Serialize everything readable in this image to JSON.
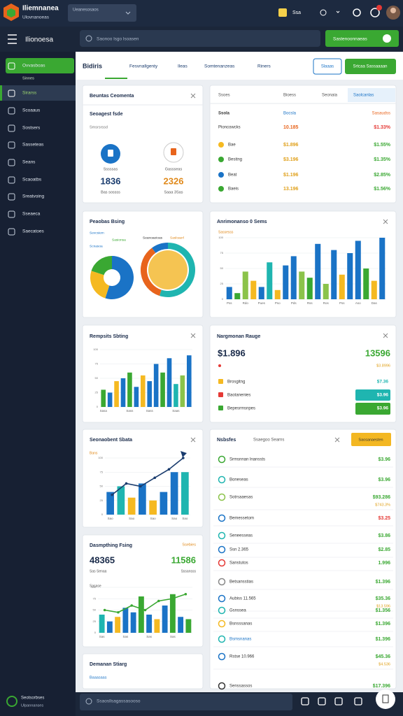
{
  "top_bar": {
    "brand": "Iliemnanea",
    "subtitle": "Ulovnanoeas",
    "selector": "Ueanesosaos",
    "account": "Ssa"
  },
  "header": {
    "title": "Ilionoesa",
    "search": "Saonoo lsgo lsoasen",
    "button": "Sastenoonnaeas"
  },
  "sidebar": {
    "items": [
      "Ovvasboas",
      "Sinnes",
      "Sirarss",
      "Scoaaus",
      "Sostsers",
      "Sasseteas",
      "Seans",
      "Scaoatbs",
      "Sreatvoing",
      "Sseaeca",
      "Saecatoes"
    ],
    "footer_title": "Seotsorbses",
    "footer_subtitle": "Ulpannanses"
  },
  "tabs": {
    "brand": "Bidiris",
    "items": [
      "Fesvnallgenty",
      "Ileas",
      "Somtenanzeas",
      "Riners"
    ],
    "outline_button": "Slaaas",
    "primary_button": "Srtcaa Sassaaaan"
  },
  "summary_card": {
    "title": "Beuntas Ceomenta",
    "subtitle": "Seoagest fsde",
    "caption": "Smsrsrssd",
    "kpis": [
      {
        "label": "Sssssas",
        "value": "1836",
        "note": "Bas sossss"
      },
      {
        "label": "Gassseas",
        "value": "2326",
        "note": "Saaa 3Sas"
      }
    ]
  },
  "table_card": {
    "tabs": [
      "Ssoes",
      "Bioess",
      "Seonaia",
      "Saolcanlas"
    ],
    "columns": [
      "Ssola",
      "Bocsla",
      "Sasaudss"
    ],
    "rows": [
      [
        "Pioncowcks",
        "10.185",
        "$1.33%"
      ],
      [
        "Bae",
        "$1.896",
        "$1.55%"
      ],
      [
        "Besitng",
        "$3.196",
        "$1.35%"
      ],
      [
        "Beat",
        "$1.196",
        "$2.85%"
      ],
      [
        "Baeis",
        "13.196",
        "$1.56%"
      ]
    ]
  },
  "pie_card": {
    "title": "Peaobas Bsing",
    "legend": [
      "Sevcsiem",
      "Sasionsa",
      "Scnasoa",
      "Seanoaeioas",
      "Sasloaerl"
    ],
    "charts": [
      {
        "type": "pie",
        "values": [
          55,
          25,
          20
        ],
        "colors": [
          "#1a73c6",
          "#f5b921",
          "#3aa832"
        ]
      },
      {
        "type": "pie",
        "values": [
          55,
          35,
          10
        ],
        "colors": [
          "#1fb5b0",
          "#e8641c",
          "#1a73c6"
        ]
      }
    ]
  },
  "bar_card": {
    "title": "Anrimonanso 0 Sems",
    "legend": "Sassesss",
    "chart": {
      "type": "bar",
      "ylim": [
        0,
        100
      ],
      "yticks": [
        0,
        25,
        50,
        75,
        100
      ],
      "values": [
        20,
        10,
        45,
        30,
        20,
        60,
        15,
        55,
        70,
        45,
        35,
        90,
        25,
        80,
        40,
        75,
        95,
        50,
        30,
        100
      ],
      "colors": [
        "#1a73c6",
        "#3aa832",
        "#8bc34a",
        "#f5b921",
        "#1a73c6",
        "#1fb5b0",
        "#f5b921",
        "#1a73c6",
        "#1a73c6",
        "#8bc34a",
        "#3aa832",
        "#1a73c6",
        "#8bc34a",
        "#1a73c6",
        "#f5b921",
        "#1a73c6",
        "#1a73c6",
        "#3aa832",
        "#f5b921",
        "#1a73c6"
      ],
      "categories": [
        "Pss",
        null,
        "Rdo",
        null,
        "Pues",
        null,
        "Pso",
        null,
        "Pds",
        null,
        "Rss",
        null,
        "Ros",
        null,
        "Pss",
        null,
        "Aso",
        null,
        "Das",
        null
      ]
    }
  },
  "bar_card_small": {
    "title": "Rempsits Sbting",
    "chart": {
      "type": "bar",
      "ylim": [
        0,
        100
      ],
      "yticks": [
        0,
        25,
        50,
        75,
        100
      ],
      "values": [
        30,
        25,
        45,
        50,
        60,
        35,
        55,
        45,
        75,
        60,
        85,
        40,
        55,
        90
      ],
      "colors": [
        "#3aa832",
        "#1a73c6",
        "#f5b921",
        "#1a73c6",
        "#3aa832",
        "#1a73c6",
        "#f5b921",
        "#1a73c6",
        "#1a73c6",
        "#3aa832",
        "#1a73c6",
        "#1fb5b0",
        "#8bc34a",
        "#1a73c6"
      ],
      "categories": [
        "Sasa",
        null,
        null,
        null,
        "Sass",
        null,
        null,
        "Sass",
        null,
        null,
        null,
        "Saas",
        null,
        null
      ]
    }
  },
  "range_card": {
    "title": "Nargmonan Rauge",
    "value": "$1.896",
    "value_right": "13596",
    "note_right": "$3.8996",
    "rows": [
      {
        "name": "Brosgitng",
        "value": "$7.36"
      },
      {
        "name": "Baotanenies",
        "value": "$3.96"
      },
      {
        "name": "Bepesrmsnpes",
        "value": "$3.96"
      }
    ]
  },
  "combo_card": {
    "title": "Seonaobent Sbata",
    "legend": "Bans",
    "chart": {
      "type": "bar",
      "ylim": [
        0,
        100
      ],
      "yticks": [
        0,
        25,
        50,
        75,
        100
      ],
      "values": [
        40,
        50,
        30,
        55,
        25,
        40,
        75,
        75
      ],
      "colors": [
        "#1a73c6",
        "#1fb5b0",
        "#f5b921",
        "#1a73c6",
        "#f5b921",
        "#1a73c6",
        "#1a73c6",
        "#1fb5b0"
      ],
      "categories": [
        "Sao",
        null,
        "Sao",
        null,
        "Sao",
        null,
        "Sao",
        "Sao"
      ],
      "line": [
        35,
        55,
        50,
        65,
        80,
        100
      ],
      "line_color": "#1a3c6e"
    }
  },
  "list_card": {
    "title": "Nsbsfes",
    "subtitle": "Ssaegoo Searns",
    "button": "Saosanaesten",
    "rows": [
      {
        "name": "Srmsnnan lnanssts",
        "value": "$3.96"
      },
      {
        "name": "Boneseas",
        "value": "$3.96"
      },
      {
        "name": "Sotrsaaesas",
        "value": "$93.286",
        "sub": "$743.3%"
      },
      {
        "name": "Bemessetom",
        "value": "$3.25"
      },
      {
        "name": "Seneesseas",
        "value": "$3.86"
      },
      {
        "name": "Ssn 2.365",
        "value": "$2.85"
      },
      {
        "name": "Sanstutos",
        "value": "1.996"
      },
      {
        "name": "Betsansstias",
        "value": "$1.396"
      },
      {
        "name": "Aubiss 11.565",
        "value": "$35.36",
        "sub": "$13.596"
      },
      {
        "name": "Gsnssea",
        "value": "$1.356"
      },
      {
        "name": "Bsnsssanas",
        "value": "$1.396"
      },
      {
        "name": "Bsmsnanas",
        "value": "$1.396"
      },
      {
        "name": "Rstse 10.966",
        "value": "$45.36",
        "sub": "$4.536"
      },
      {
        "name": "Senssassos",
        "value": "$17.396"
      }
    ]
  },
  "trend_card": {
    "title": "Dasmpthing Fsing",
    "tag": "Ssebies",
    "value": "48365",
    "value_right": "11586",
    "caption": "Sas Senaa",
    "caption_right": "Sssansss",
    "label": "Sasase",
    "chart": {
      "type": "bar",
      "ylim": [
        0,
        100
      ],
      "yticks": [
        0,
        25,
        50,
        75,
        100
      ],
      "values": [
        40,
        25,
        35,
        55,
        45,
        80,
        40,
        30,
        60,
        85,
        35,
        30
      ],
      "colors": [
        "#1fb5b0",
        "#1a73c6",
        "#f5b921",
        "#1a73c6",
        "#1a73c6",
        "#3aa832",
        "#1a73c6",
        "#f5b921",
        "#1a73c6",
        "#3aa832",
        "#1a73c6",
        "#3aa832"
      ],
      "categories": [
        "Sas",
        null,
        null,
        "Sas",
        null,
        null,
        "Sas",
        null,
        null,
        "Sas",
        null,
        null
      ],
      "line": [
        50,
        45,
        60,
        50,
        70,
        75,
        85
      ],
      "line_color": "#3aa832"
    }
  },
  "footer_card": {
    "title": "Demanan Stiarg",
    "caption": "Baaasaas"
  },
  "bottom_bar": {
    "search": "Ssaosllsagassasooso"
  }
}
